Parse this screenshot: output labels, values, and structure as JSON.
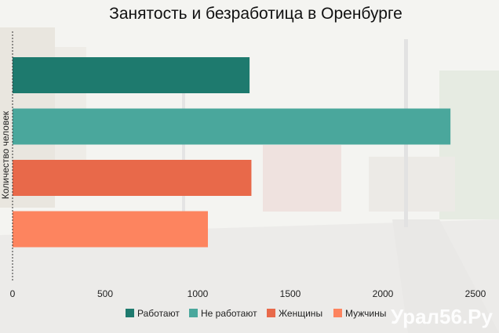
{
  "chart_data": {
    "type": "bar",
    "orientation": "horizontal",
    "title": "Занятость и безработица в Оренбурге",
    "ylabel": "Количество человек",
    "xlabel": "",
    "xlim": [
      0,
      2600
    ],
    "xticks": [
      0,
      500,
      1000,
      1500,
      2000,
      2500
    ],
    "grid": false,
    "legend_position": "bottom",
    "series": [
      {
        "name": "Работают",
        "value": 1280,
        "color": "#1e7a6e"
      },
      {
        "name": "Не работают",
        "value": 2365,
        "color": "#4aa79c"
      },
      {
        "name": "Женщины",
        "value": 1290,
        "color": "#e8694a"
      },
      {
        "name": "Мужчины",
        "value": 1055,
        "color": "#fd845f"
      }
    ]
  },
  "watermark": "Урал56.Ру"
}
